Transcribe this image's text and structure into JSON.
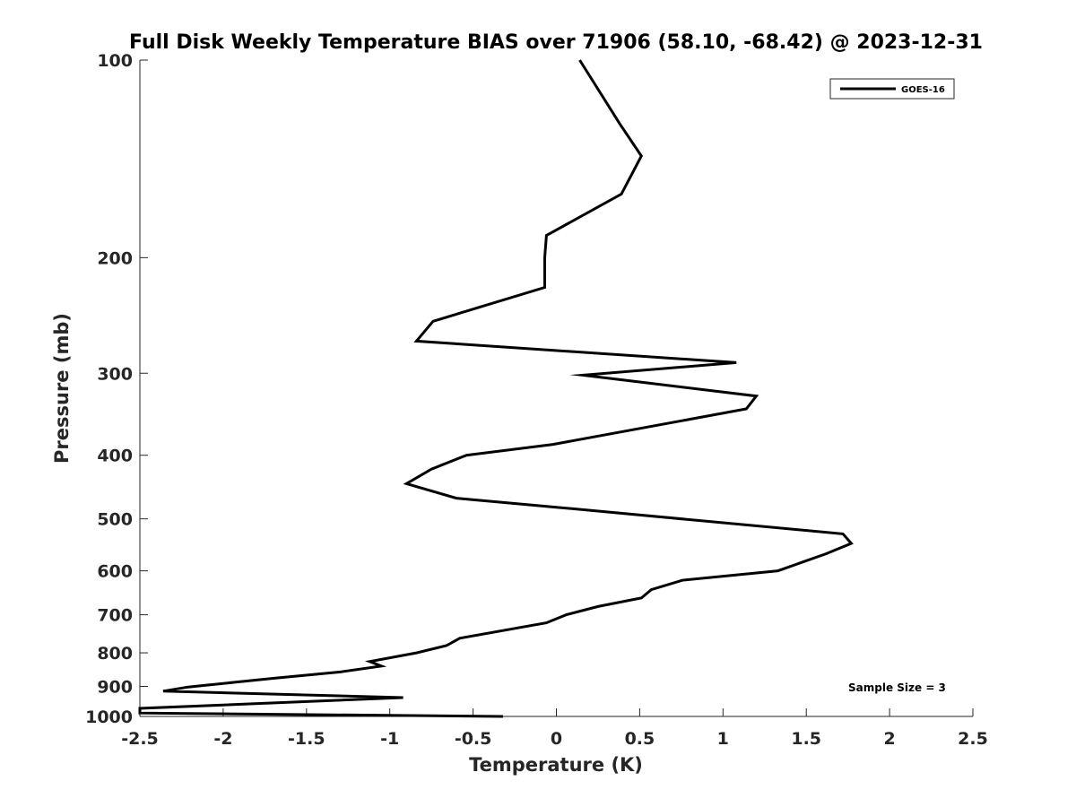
{
  "chart_data": {
    "type": "line",
    "title": "Full Disk Weekly Temperature BIAS over 71906 (58.10, -68.42) @ 2023-12-31",
    "xlabel": "Temperature (K)",
    "ylabel": "Pressure (mb)",
    "xlim": [
      -2.5,
      2.5
    ],
    "ylim": [
      100,
      1000
    ],
    "y_scale": "log",
    "y_reversed": true,
    "x_ticks": [
      -2.5,
      -2,
      -1.5,
      -1,
      -0.5,
      0,
      0.5,
      1,
      1.5,
      2,
      2.5
    ],
    "x_tick_labels": [
      "-2.5",
      "-2",
      "-1.5",
      "-1",
      "-0.5",
      "0",
      "0.5",
      "1",
      "1.5",
      "2",
      "2.5"
    ],
    "y_ticks": [
      100,
      200,
      300,
      400,
      500,
      600,
      700,
      800,
      900,
      1000
    ],
    "y_tick_labels": [
      "100",
      "200",
      "300",
      "400",
      "500",
      "600",
      "700",
      "800",
      "900",
      "1000"
    ],
    "grid": false,
    "legend_position": "top-right",
    "annotation": "Sample Size = 3",
    "line_color": "#000000",
    "series": [
      {
        "name": "GOES-16",
        "points": [
          {
            "x": 0.14,
            "y": 100
          },
          {
            "x": 0.38,
            "y": 125
          },
          {
            "x": 0.51,
            "y": 140
          },
          {
            "x": 0.39,
            "y": 160
          },
          {
            "x": -0.06,
            "y": 185
          },
          {
            "x": -0.07,
            "y": 200
          },
          {
            "x": -0.07,
            "y": 222
          },
          {
            "x": -0.74,
            "y": 250
          },
          {
            "x": -0.84,
            "y": 268
          },
          {
            "x": 1.08,
            "y": 289
          },
          {
            "x": 0.16,
            "y": 302
          },
          {
            "x": 1.2,
            "y": 325
          },
          {
            "x": 1.14,
            "y": 340
          },
          {
            "x": -0.02,
            "y": 385
          },
          {
            "x": -0.54,
            "y": 400
          },
          {
            "x": -0.75,
            "y": 420
          },
          {
            "x": -0.9,
            "y": 442
          },
          {
            "x": -0.6,
            "y": 465
          },
          {
            "x": 0.0,
            "y": 480
          },
          {
            "x": 1.72,
            "y": 527
          },
          {
            "x": 1.77,
            "y": 545
          },
          {
            "x": 1.62,
            "y": 565
          },
          {
            "x": 1.33,
            "y": 600
          },
          {
            "x": 0.76,
            "y": 620
          },
          {
            "x": 0.57,
            "y": 641
          },
          {
            "x": 0.51,
            "y": 660
          },
          {
            "x": 0.25,
            "y": 680
          },
          {
            "x": 0.06,
            "y": 700
          },
          {
            "x": -0.06,
            "y": 720
          },
          {
            "x": -0.58,
            "y": 760
          },
          {
            "x": -0.66,
            "y": 780
          },
          {
            "x": -0.84,
            "y": 800
          },
          {
            "x": -1.12,
            "y": 825
          },
          {
            "x": -1.05,
            "y": 838
          },
          {
            "x": -1.29,
            "y": 855
          },
          {
            "x": -1.7,
            "y": 875
          },
          {
            "x": -2.21,
            "y": 902
          },
          {
            "x": -2.36,
            "y": 915
          },
          {
            "x": -0.92,
            "y": 936
          },
          {
            "x": -2.5,
            "y": 972
          },
          {
            "x": -2.5,
            "y": 988
          },
          {
            "x": -0.32,
            "y": 1000
          }
        ]
      }
    ]
  }
}
